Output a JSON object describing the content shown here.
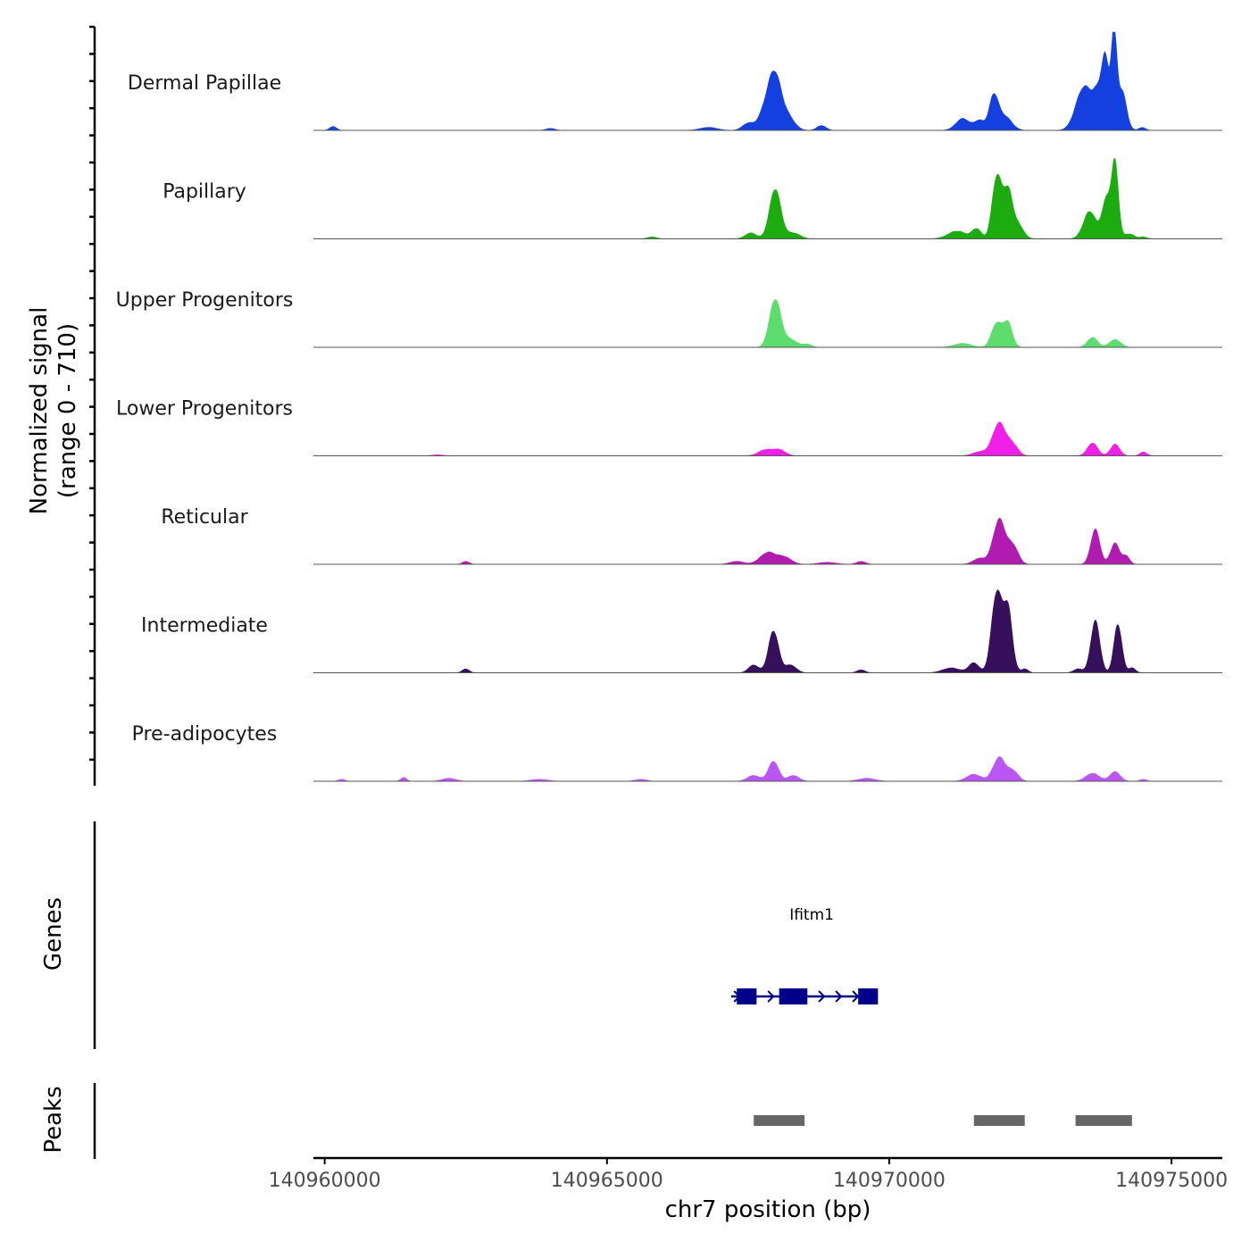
{
  "chart_data": {
    "type": "area",
    "ylabel": "Normalized signal\n(range 0 - 710)",
    "ylabel_lines": [
      "Normalized signal",
      "(range 0 - 710)"
    ],
    "ylim": [
      0,
      710
    ],
    "xlabel": "chr7 position (bp)",
    "xlim": [
      140959800,
      140975900
    ],
    "x_ticks": [
      140960000,
      140965000,
      140970000,
      140975000
    ],
    "x_tick_labels": [
      "140960000",
      "140965000",
      "140970000",
      "140975000"
    ],
    "signal_extent": [
      140959800,
      140975900
    ],
    "tracks": [
      {
        "name": "Dermal Papillae",
        "color": "#1440E0",
        "peaks": [
          [
            140960150,
            0.04,
            60
          ],
          [
            140964000,
            0.02,
            80
          ],
          [
            140966800,
            0.03,
            150
          ],
          [
            140967500,
            0.07,
            100
          ],
          [
            140967820,
            0.22,
            120
          ],
          [
            140967980,
            0.48,
            110
          ],
          [
            140968200,
            0.14,
            120
          ],
          [
            140968800,
            0.05,
            80
          ],
          [
            140971300,
            0.12,
            120
          ],
          [
            140971600,
            0.1,
            90
          ],
          [
            140971850,
            0.34,
            80
          ],
          [
            140972050,
            0.14,
            120
          ],
          [
            140973450,
            0.45,
            140
          ],
          [
            140973700,
            0.3,
            90
          ],
          [
            140973830,
            0.65,
            65
          ],
          [
            140973980,
            0.95,
            50
          ],
          [
            140974120,
            0.4,
            80
          ],
          [
            140974480,
            0.03,
            60
          ]
        ]
      },
      {
        "name": "Papillary",
        "color": "#1CAC10",
        "peaks": [
          [
            140965800,
            0.02,
            80
          ],
          [
            140967550,
            0.06,
            100
          ],
          [
            140967980,
            0.5,
            100
          ],
          [
            140968300,
            0.06,
            120
          ],
          [
            140971200,
            0.08,
            160
          ],
          [
            140971550,
            0.1,
            80
          ],
          [
            140971900,
            0.6,
            80
          ],
          [
            140972100,
            0.5,
            90
          ],
          [
            140972300,
            0.12,
            90
          ],
          [
            140973550,
            0.28,
            110
          ],
          [
            140973850,
            0.4,
            80
          ],
          [
            140974000,
            0.75,
            60
          ],
          [
            140974250,
            0.05,
            90
          ],
          [
            140974500,
            0.02,
            60
          ]
        ]
      },
      {
        "name": "Upper Progenitors",
        "color": "#5CDD6E",
        "peaks": [
          [
            140967980,
            0.48,
            100
          ],
          [
            140968250,
            0.08,
            120
          ],
          [
            140968550,
            0.03,
            80
          ],
          [
            140971300,
            0.04,
            150
          ],
          [
            140971900,
            0.24,
            90
          ],
          [
            140972100,
            0.25,
            80
          ],
          [
            140973600,
            0.1,
            90
          ],
          [
            140974000,
            0.08,
            100
          ]
        ]
      },
      {
        "name": "Lower Progenitors",
        "color": "#F020E8",
        "peaks": [
          [
            140967800,
            0.06,
            120
          ],
          [
            140968050,
            0.06,
            110
          ],
          [
            140971600,
            0.04,
            120
          ],
          [
            140971950,
            0.33,
            120
          ],
          [
            140972200,
            0.1,
            90
          ],
          [
            140973600,
            0.13,
            90
          ],
          [
            140974000,
            0.12,
            80
          ],
          [
            140974500,
            0.04,
            60
          ],
          [
            140962000,
            0.01,
            100
          ]
        ]
      },
      {
        "name": "Reticular",
        "color": "#B01CB0",
        "peaks": [
          [
            140962500,
            0.03,
            60
          ],
          [
            140967300,
            0.03,
            120
          ],
          [
            140967850,
            0.12,
            140
          ],
          [
            140968150,
            0.07,
            120
          ],
          [
            140968900,
            0.02,
            150
          ],
          [
            140969500,
            0.03,
            80
          ],
          [
            140971600,
            0.06,
            110
          ],
          [
            140971950,
            0.45,
            110
          ],
          [
            140972200,
            0.18,
            90
          ],
          [
            140973650,
            0.35,
            80
          ],
          [
            140974000,
            0.22,
            80
          ],
          [
            140974200,
            0.08,
            60
          ]
        ]
      },
      {
        "name": "Intermediate",
        "color": "#36105A",
        "peaks": [
          [
            140962500,
            0.04,
            60
          ],
          [
            140967600,
            0.08,
            90
          ],
          [
            140967950,
            0.42,
            90
          ],
          [
            140968250,
            0.08,
            100
          ],
          [
            140969500,
            0.03,
            70
          ],
          [
            140971100,
            0.05,
            150
          ],
          [
            140971500,
            0.1,
            90
          ],
          [
            140971900,
            0.8,
            90
          ],
          [
            140972100,
            0.65,
            80
          ],
          [
            140972400,
            0.04,
            60
          ],
          [
            140973350,
            0.04,
            80
          ],
          [
            140973650,
            0.52,
            80
          ],
          [
            140974050,
            0.5,
            70
          ],
          [
            140974300,
            0.05,
            60
          ]
        ]
      },
      {
        "name": "Pre-adipocytes",
        "color": "#BA56F2",
        "peaks": [
          [
            140960300,
            0.02,
            60
          ],
          [
            140961400,
            0.04,
            50
          ],
          [
            140962200,
            0.03,
            120
          ],
          [
            140963800,
            0.02,
            150
          ],
          [
            140965600,
            0.02,
            100
          ],
          [
            140967600,
            0.06,
            110
          ],
          [
            140967950,
            0.2,
            90
          ],
          [
            140968300,
            0.06,
            100
          ],
          [
            140969600,
            0.03,
            150
          ],
          [
            140971500,
            0.07,
            130
          ],
          [
            140971950,
            0.24,
            110
          ],
          [
            140972200,
            0.1,
            90
          ],
          [
            140973600,
            0.08,
            120
          ],
          [
            140974000,
            0.1,
            90
          ],
          [
            140974500,
            0.02,
            60
          ]
        ]
      }
    ],
    "genes": [
      {
        "name": "Ifitm1",
        "start": 140967200,
        "end": 140969800,
        "strand": "+",
        "color": "#00008B",
        "exons": [
          [
            140967300,
            140967650
          ],
          [
            140968050,
            140968550
          ],
          [
            140969450,
            140969800
          ]
        ]
      }
    ],
    "peak_regions": [
      {
        "start": 140967600,
        "end": 140968500
      },
      {
        "start": 140971500,
        "end": 140972400
      },
      {
        "start": 140973300,
        "end": 140974300
      }
    ],
    "peak_color": "#666666",
    "panels": [
      "Normalized signal",
      "Genes",
      "Peaks"
    ],
    "genes_panel_title": "Genes",
    "peaks_panel_title": "Peaks"
  }
}
